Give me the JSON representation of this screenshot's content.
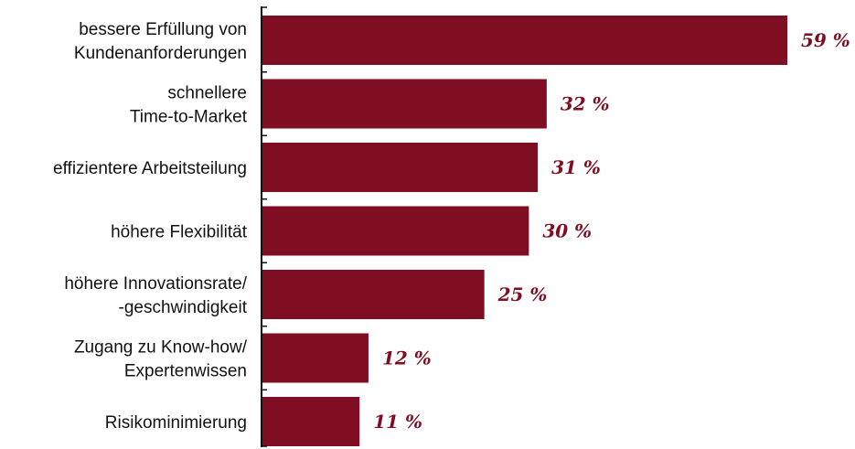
{
  "chart_data": {
    "type": "bar",
    "orientation": "horizontal",
    "categories": [
      [
        "bessere Erfüllung von",
        "Kundenanforderungen"
      ],
      [
        "schnellere",
        "Time-to-Market"
      ],
      [
        "effizientere Arbeitsteilung"
      ],
      [
        "höhere Flexibilität"
      ],
      [
        "höhere Innovationsrate/",
        "-geschwindigkeit"
      ],
      [
        "Zugang zu Know-how/",
        "Expertenwissen"
      ],
      [
        "Risikominimierung"
      ]
    ],
    "values": [
      59,
      32,
      31,
      30,
      25,
      12,
      11
    ],
    "value_labels": [
      "59 %",
      "32 %",
      "31 %",
      "30 %",
      "25 %",
      "12 %",
      "11 %"
    ],
    "unit": "%",
    "xlim": [
      0,
      59
    ],
    "grid": false,
    "colors": {
      "bar": "#7f0e22",
      "label": "#7f0e22",
      "axis": "#111111"
    }
  }
}
